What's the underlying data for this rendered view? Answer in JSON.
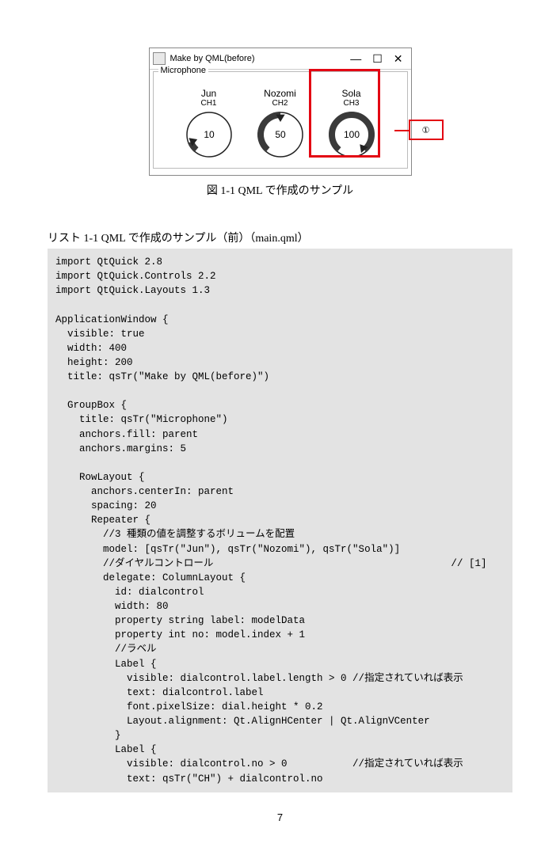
{
  "figure": {
    "window_title": "Make by QML(before)",
    "groupbox_label": "Microphone",
    "dials": [
      {
        "name": "Jun",
        "ch": "CH1",
        "value": 10,
        "fill_ratio": 0.1,
        "color": "#3a3a3a"
      },
      {
        "name": "Nozomi",
        "ch": "CH2",
        "value": 50,
        "fill_ratio": 0.5,
        "color": "#3a3a3a"
      },
      {
        "name": "Sola",
        "ch": "CH3",
        "value": 100,
        "fill_ratio": 1.0,
        "color": "#3a3a3a"
      }
    ],
    "highlight_dial_index": 2,
    "callout_label": "①",
    "border_color": "#e30613",
    "caption": "図 1-1 QML で作成のサンプル"
  },
  "listing": {
    "caption": "リスト 1-1 QML で作成のサンプル（前）（main.qml）",
    "code": "import QtQuick 2.8\nimport QtQuick.Controls 2.2\nimport QtQuick.Layouts 1.3\n\nApplicationWindow {\n  visible: true\n  width: 400\n  height: 200\n  title: qsTr(\"Make by QML(before)\")\n\n  GroupBox {\n    title: qsTr(\"Microphone\")\n    anchors.fill: parent\n    anchors.margins: 5\n\n    RowLayout {\n      anchors.centerIn: parent\n      spacing: 20\n      Repeater {\n        //3 種類の値を調整するボリュームを配置\n        model: [qsTr(\"Jun\"), qsTr(\"Nozomi\"), qsTr(\"Sola\")]\n        //ダイヤルコントロール                                        // [1]\n        delegate: ColumnLayout {\n          id: dialcontrol\n          width: 80\n          property string label: modelData\n          property int no: model.index + 1\n          //ラベル\n          Label {\n            visible: dialcontrol.label.length > 0 //指定されていれば表示\n            text: dialcontrol.label\n            font.pixelSize: dial.height * 0.2\n            Layout.alignment: Qt.AlignHCenter | Qt.AlignVCenter\n          }\n          Label {\n            visible: dialcontrol.no > 0           //指定されていれば表示\n            text: qsTr(\"CH\") + dialcontrol.no"
  },
  "page_number": "7"
}
